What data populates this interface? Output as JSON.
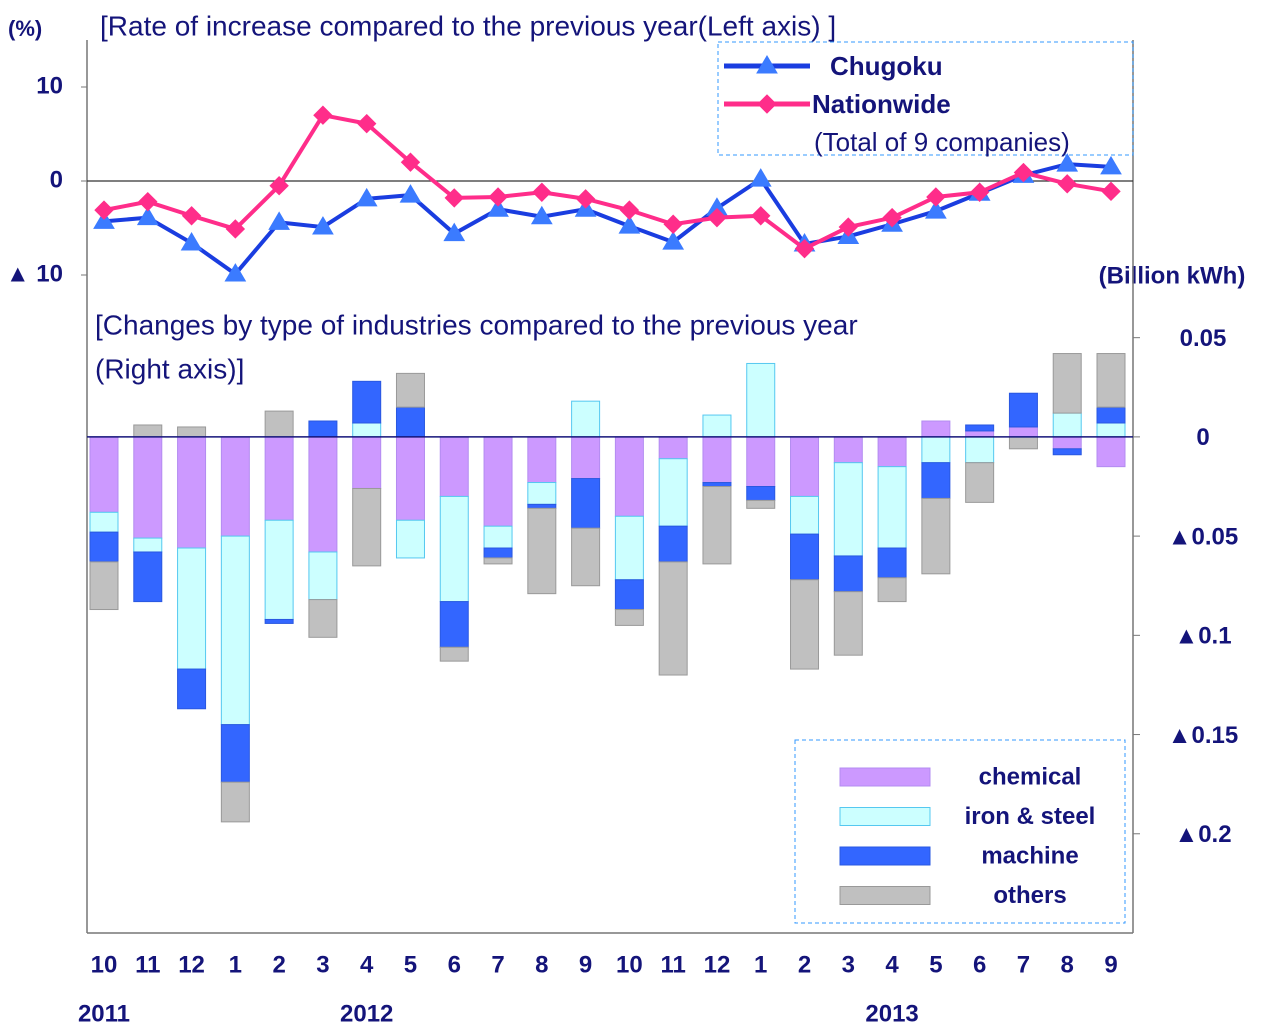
{
  "chart_data": [
    {
      "type": "line",
      "title": "[Rate of increase compared to the previous year(Left axis) ]",
      "y_unit": "(%)",
      "categories": [
        "10",
        "11",
        "12",
        "1",
        "2",
        "3",
        "4",
        "5",
        "6",
        "7",
        "8",
        "9",
        "10",
        "11",
        "12",
        "1",
        "2",
        "3",
        "4",
        "5",
        "6",
        "7",
        "8",
        "9"
      ],
      "ylim": [
        -80,
        15
      ],
      "yticks": [
        10,
        0,
        {
          "value": -10,
          "label": "▲ 10"
        }
      ],
      "zero_line": true,
      "legend_position": "upper right",
      "series": [
        {
          "name": "Chugoku",
          "color": "#1a3de0",
          "marker_color": "#3b7bff",
          "marker": "triangle",
          "values": [
            -4.3,
            -3.9,
            -6.6,
            -9.9,
            -4.4,
            -4.9,
            -1.9,
            -1.5,
            -5.6,
            -3.0,
            -3.8,
            -3.0,
            -4.8,
            -6.5,
            -2.9,
            0.2,
            -6.7,
            -5.9,
            -4.6,
            -3.2,
            -1.3,
            0.6,
            1.8,
            1.5
          ]
        },
        {
          "name": "Nationwide",
          "note": "(Total of 9 companies)",
          "color": "#ff2d8a",
          "marker_color": "#ff2d8a",
          "marker": "diamond",
          "values": [
            -3.1,
            -2.2,
            -3.7,
            -5.1,
            -0.5,
            7.0,
            6.1,
            2.0,
            -1.8,
            -1.7,
            -1.2,
            -1.9,
            -3.1,
            -4.6,
            -3.9,
            -3.7,
            -7.2,
            -4.9,
            -3.9,
            -1.7,
            -1.2,
            0.9,
            -0.3,
            -1.1
          ]
        }
      ]
    },
    {
      "type": "stacked_bar",
      "title": [
        "[Changes by type of industries compared to the previous year",
        "(Right axis)]"
      ],
      "y2_unit": "(Billion kWh)",
      "categories": [
        "10",
        "11",
        "12",
        "1",
        "2",
        "3",
        "4",
        "5",
        "6",
        "7",
        "8",
        "9",
        "10",
        "11",
        "12",
        "1",
        "2",
        "3",
        "4",
        "5",
        "6",
        "7",
        "8",
        "9"
      ],
      "year_labels": [
        {
          "index": 0,
          "label": "2011"
        },
        {
          "index": 6,
          "label": "2012"
        },
        {
          "index": 18,
          "label": "2013"
        }
      ],
      "y2lim": [
        -0.25,
        0.2
      ],
      "y2ticks": [
        0.05,
        0,
        {
          "value": -0.05,
          "label": "▲0.05"
        },
        {
          "value": -0.1,
          "label": "▲0.1"
        },
        {
          "value": -0.15,
          "label": "▲0.15"
        },
        {
          "value": -0.2,
          "label": "▲0.2"
        }
      ],
      "zero_line": true,
      "legend_position": "lower right",
      "series": [
        {
          "name": "chemical",
          "color": "#cc99ff",
          "edge": "#b38cf0",
          "axis": "y2",
          "values": [
            -0.038,
            -0.051,
            -0.056,
            -0.05,
            -0.042,
            -0.058,
            -0.026,
            -0.042,
            -0.03,
            -0.045,
            -0.023,
            -0.021,
            -0.04,
            -0.011,
            -0.023,
            -0.025,
            -0.03,
            -0.013,
            -0.015,
            0.008,
            0.003,
            0.005,
            -0.006,
            -0.015
          ]
        },
        {
          "name": "iron & steel",
          "color": "#ccffff",
          "edge": "#55c8f0",
          "axis": "y2",
          "values": [
            -0.01,
            -0.007,
            -0.061,
            -0.095,
            -0.05,
            -0.024,
            0.007,
            -0.019,
            -0.053,
            -0.011,
            -0.011,
            0.018,
            -0.032,
            -0.034,
            0.011,
            0.037,
            -0.019,
            -0.047,
            -0.041,
            -0.013,
            -0.013,
            0,
            0.012,
            0.007
          ]
        },
        {
          "name": "machine",
          "color": "#3366ff",
          "edge": "#2a58e0",
          "axis": "y2",
          "values": [
            -0.015,
            -0.025,
            -0.02,
            -0.029,
            -0.002,
            0.008,
            0.021,
            0.015,
            -0.023,
            -0.005,
            -0.002,
            -0.025,
            -0.015,
            -0.018,
            -0.002,
            -0.007,
            -0.023,
            -0.018,
            -0.015,
            -0.018,
            0.003,
            0.017,
            -0.003,
            0.008
          ]
        },
        {
          "name": "others",
          "color": "#c0c0c0",
          "edge": "#999999",
          "axis": "y2",
          "values": [
            -0.024,
            0.006,
            0.005,
            -0.02,
            0.013,
            -0.019,
            -0.039,
            0.017,
            -0.007,
            -0.003,
            -0.043,
            -0.029,
            -0.008,
            -0.057,
            -0.039,
            -0.004,
            -0.045,
            -0.032,
            -0.012,
            -0.038,
            -0.02,
            -0.006,
            0.03,
            0.027
          ]
        }
      ]
    }
  ]
}
